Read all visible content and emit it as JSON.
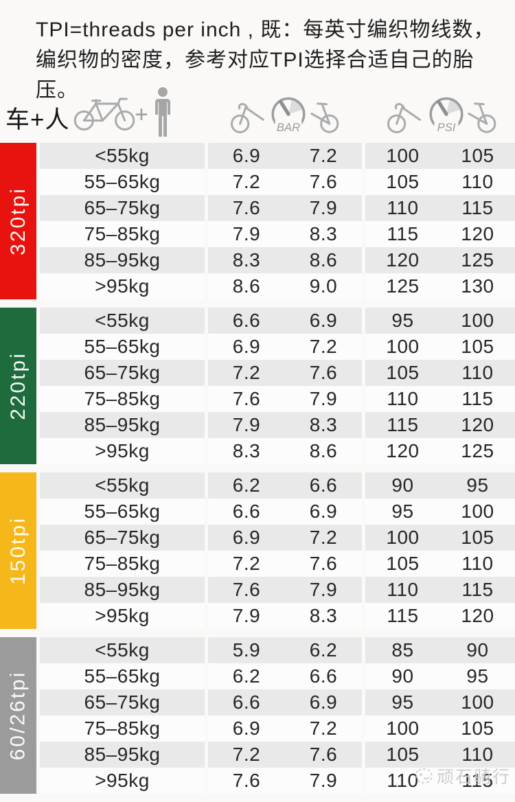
{
  "intro": {
    "line1": "TPI=threads per inch , 既：每英寸编织物线数，",
    "line2": "编织物的密度，参考对应TPI选择合适自己的胎压。"
  },
  "header": {
    "left_label": "车+人",
    "plus_sign": "+",
    "icons": [
      "bicycle-icon",
      "person-icon",
      "road-bike-front-icon",
      "pressure-gauge-icon",
      "bike-rear-icon"
    ],
    "bar_unit": "BAR",
    "psi_unit": "PSI"
  },
  "watermark": "顽石骑行",
  "colors": {
    "red": "#e8120e",
    "green": "#1e6b3d",
    "yellow": "#f5b71a",
    "gray": "#9b9b9b",
    "stripe": "#e9e9e9",
    "stripe_alt": "#fcfcfc",
    "icon_gray": "#ababab"
  },
  "sections": [
    {
      "tpi": "320tpi",
      "color": "#e8120e",
      "rows": [
        {
          "weight": "<55kg",
          "bar": [
            "6.9",
            "7.2"
          ],
          "psi": [
            "100",
            "105"
          ]
        },
        {
          "weight": "55–65kg",
          "bar": [
            "7.2",
            "7.6"
          ],
          "psi": [
            "105",
            "110"
          ]
        },
        {
          "weight": "65–75kg",
          "bar": [
            "7.6",
            "7.9"
          ],
          "psi": [
            "110",
            "115"
          ]
        },
        {
          "weight": "75–85kg",
          "bar": [
            "7.9",
            "8.3"
          ],
          "psi": [
            "115",
            "120"
          ]
        },
        {
          "weight": "85–95kg",
          "bar": [
            "8.3",
            "8.6"
          ],
          "psi": [
            "120",
            "125"
          ]
        },
        {
          "weight": ">95kg",
          "bar": [
            "8.6",
            "9.0"
          ],
          "psi": [
            "125",
            "130"
          ]
        }
      ]
    },
    {
      "tpi": "220tpi",
      "color": "#1e6b3d",
      "rows": [
        {
          "weight": "<55kg",
          "bar": [
            "6.6",
            "6.9"
          ],
          "psi": [
            "95",
            "100"
          ]
        },
        {
          "weight": "55–65kg",
          "bar": [
            "6.9",
            "7.2"
          ],
          "psi": [
            "100",
            "105"
          ]
        },
        {
          "weight": "65–75kg",
          "bar": [
            "7.2",
            "7.6"
          ],
          "psi": [
            "105",
            "110"
          ]
        },
        {
          "weight": "75–85kg",
          "bar": [
            "7.6",
            "7.9"
          ],
          "psi": [
            "110",
            "115"
          ]
        },
        {
          "weight": "85–95kg",
          "bar": [
            "7.9",
            "8.3"
          ],
          "psi": [
            "115",
            "120"
          ]
        },
        {
          "weight": ">95kg",
          "bar": [
            "8.3",
            "8.6"
          ],
          "psi": [
            "120",
            "125"
          ]
        }
      ]
    },
    {
      "tpi": "150tpi",
      "color": "#f5b71a",
      "rows": [
        {
          "weight": "<55kg",
          "bar": [
            "6.2",
            "6.6"
          ],
          "psi": [
            "90",
            "95"
          ]
        },
        {
          "weight": "55–65kg",
          "bar": [
            "6.6",
            "6.9"
          ],
          "psi": [
            "95",
            "100"
          ]
        },
        {
          "weight": "65–75kg",
          "bar": [
            "6.9",
            "7.2"
          ],
          "psi": [
            "100",
            "105"
          ]
        },
        {
          "weight": "75–85kg",
          "bar": [
            "7.2",
            "7.6"
          ],
          "psi": [
            "105",
            "110"
          ]
        },
        {
          "weight": "85–95kg",
          "bar": [
            "7.6",
            "7.9"
          ],
          "psi": [
            "110",
            "115"
          ]
        },
        {
          "weight": ">95kg",
          "bar": [
            "7.9",
            "8.3"
          ],
          "psi": [
            "115",
            "120"
          ]
        }
      ]
    },
    {
      "tpi": "60/26tpi",
      "color": "#9b9b9b",
      "rows": [
        {
          "weight": "<55kg",
          "bar": [
            "5.9",
            "6.2"
          ],
          "psi": [
            "85",
            "90"
          ]
        },
        {
          "weight": "55–65kg",
          "bar": [
            "6.2",
            "6.6"
          ],
          "psi": [
            "90",
            "95"
          ]
        },
        {
          "weight": "65–75kg",
          "bar": [
            "6.6",
            "6.9"
          ],
          "psi": [
            "95",
            "100"
          ]
        },
        {
          "weight": "75–85kg",
          "bar": [
            "6.9",
            "7.2"
          ],
          "psi": [
            "100",
            "105"
          ]
        },
        {
          "weight": "85–95kg",
          "bar": [
            "7.2",
            "7.6"
          ],
          "psi": [
            "105",
            "110"
          ]
        },
        {
          "weight": ">95kg",
          "bar": [
            "7.6",
            "7.9"
          ],
          "psi": [
            "110",
            "115"
          ]
        }
      ]
    }
  ]
}
